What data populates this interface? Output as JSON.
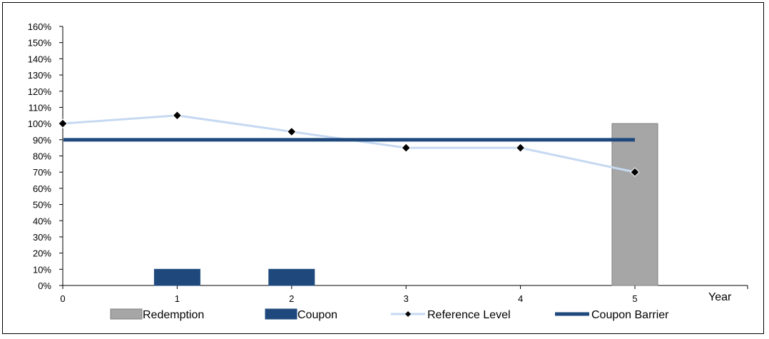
{
  "chart_data": {
    "type": "bar",
    "xlabel": "Year",
    "ylabel": "",
    "ylim": [
      0,
      160
    ],
    "yticks": [
      "0%",
      "10%",
      "20%",
      "30%",
      "40%",
      "50%",
      "60%",
      "70%",
      "80%",
      "90%",
      "100%",
      "110%",
      "120%",
      "130%",
      "140%",
      "150%",
      "160%"
    ],
    "categories": [
      "0",
      "1",
      "2",
      "3",
      "4",
      "5"
    ],
    "series": [
      {
        "name": "Redemption",
        "kind": "bar",
        "color": "#a6a6a6",
        "values": [
          null,
          null,
          null,
          null,
          null,
          100
        ]
      },
      {
        "name": "Coupon",
        "kind": "bar",
        "color": "#1f497d",
        "values": [
          null,
          10,
          10,
          null,
          null,
          null
        ]
      },
      {
        "name": "Reference Level",
        "kind": "line",
        "color": "#c6d9f1",
        "marker": "diamond",
        "marker_color": "#000000",
        "values": [
          100,
          105,
          95,
          85,
          85,
          70
        ]
      },
      {
        "name": "Coupon Barrier",
        "kind": "line",
        "color": "#1f497d",
        "values": [
          90,
          90,
          90,
          90,
          90,
          90
        ]
      }
    ],
    "legend_position": "bottom",
    "grid": false
  }
}
